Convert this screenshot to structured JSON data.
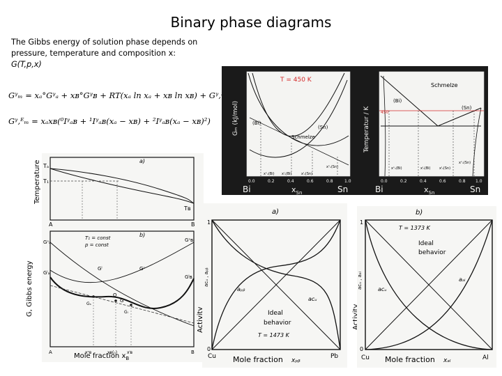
{
  "slide": {
    "title": "Binary phase diagrams",
    "intro_text": "The Gibbs energy of solution phase depends on pressure, temperature and composition x:",
    "intro_formula": "G(T,p,x)"
  },
  "equations": {
    "eq1": "Gᵞₘ = xₐ°Gᵞₐ + xʙ°Gᵞʙ + RT(xₐ ln xₐ + xʙ ln xʙ) + Gᵞ,ᴱₘ",
    "eq2": "Gᵞ,ᴱₘ = xₐxʙ(⁰Iᵞₐʙ + ¹Iᵞₐʙ(xₐ − xʙ) + ²Iᵞₐʙ(xₐ − xʙ)²)"
  },
  "left_figure": {
    "top_ylabel": "Temperature",
    "bottom_ylabel": "G, Gibbs energy",
    "xlabel": "Mole fraction x",
    "xlabel_sub": "B",
    "panel_a_tag": "a)",
    "panel_b_tag": "b)",
    "tA": "Tₐ",
    "t1": "T₁",
    "tB": "Tʙ",
    "corner_A": "A",
    "corner_B": "B",
    "t_const": "T₁ = const",
    "p_const": "p = const",
    "GA_s": "Gˢₐ",
    "GB_s": "Gˢʙ",
    "GA_l": "Gˡₐ",
    "GB_l": "Gˡʙ",
    "GL": "Gˡ",
    "GS": "Gˢ",
    "pt_O": "O",
    "pt_G": "G",
    "pt_Gs": "Gₛ",
    "pt_Gl": "Gₗ",
    "x_mid": "xʙ(₀)",
    "x_s": "xˢʙ",
    "x_l": "xˡʙ"
  },
  "top_right": {
    "temp_note": "T = 450 K",
    "ylabel_left": "Gₘ (kJ/mol)",
    "ylabel_right": "Temperatur / K",
    "xlabel": "x",
    "xlabel_sub": "Sn",
    "left_end": "Bi",
    "right_end": "Sn",
    "ticks": [
      "0.0",
      "0.2",
      "0.4",
      "0.6",
      "0.8",
      "1.0"
    ],
    "phase_bi": "(Bi)",
    "phase_sn": "(Sn)",
    "melt": "Schmelze",
    "t450": "450",
    "markers_left": [
      "xˢₙ(Bi)",
      "xˡₙ(Bi)",
      "xˡₙ(Sn)",
      "xˢₙ(Sn)"
    ],
    "markers_right": [
      "xˢₙ(Bi)",
      "xˡₙ(Bi)",
      "xˡₙ(Sn)",
      "xˢₙ(Sn)"
    ]
  },
  "activity_pb": {
    "tag": "a)",
    "ylabel": "Activity",
    "yaxis_symbol": "aᴄᵤ , aₚᵦ",
    "label_apb": "aₚᵦ",
    "label_acu": "aᴄᵤ",
    "ideal_line1": "Ideal",
    "ideal_line2": "behavior",
    "temp": "T = 1473 K",
    "left_el": "Cu",
    "right_el": "Pb",
    "xlabel": "Mole fraction",
    "xsym": "xₚᵦ",
    "y_top": "1",
    "y_bottom": "0"
  },
  "activity_al": {
    "tag": "b)",
    "ylabel": "Activity",
    "yaxis_symbol": "aᴄᵤ , aₐₗ",
    "label_aal": "aₐₗ",
    "label_acu": "aᴄᵤ",
    "ideal_line1": "Ideal",
    "ideal_line2": "behavior",
    "temp": "T = 1373 K",
    "left_el": "Cu",
    "right_el": "Al",
    "xlabel": "Mole fraction",
    "xsym": "xₐₗ",
    "y_top": "1",
    "y_bottom": "0"
  },
  "colors": {
    "accent_red": "#d42a2a",
    "ink": "#111111",
    "paper": "#f6f6f4",
    "dark_panel": "#1a1a1a"
  }
}
